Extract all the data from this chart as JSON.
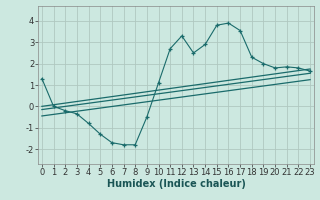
{
  "title": "",
  "xlabel": "Humidex (Indice chaleur)",
  "bg_color": "#cce8e0",
  "grid_color": "#b0c8c0",
  "line_color": "#1a6b6b",
  "scatter_x": [
    0,
    1,
    2,
    3,
    4,
    5,
    6,
    7,
    8,
    9,
    10,
    11,
    12,
    13,
    14,
    15,
    16,
    17,
    18,
    19,
    20,
    21,
    22,
    23
  ],
  "scatter_y": [
    1.3,
    0.0,
    -0.2,
    -0.35,
    -0.8,
    -1.3,
    -1.7,
    -1.8,
    -1.8,
    -0.5,
    1.1,
    2.7,
    3.3,
    2.5,
    2.9,
    3.8,
    3.9,
    3.55,
    2.3,
    2.0,
    1.8,
    1.85,
    1.8,
    1.65
  ],
  "line1_x": [
    0,
    23
  ],
  "line1_y": [
    0.0,
    1.75
  ],
  "line2_x": [
    0,
    23
  ],
  "line2_y": [
    -0.15,
    1.55
  ],
  "line3_x": [
    0,
    23
  ],
  "line3_y": [
    -0.45,
    1.25
  ],
  "xlim": [
    -0.3,
    23.3
  ],
  "ylim": [
    -2.7,
    4.7
  ],
  "xticks": [
    0,
    1,
    2,
    3,
    4,
    5,
    6,
    7,
    8,
    9,
    10,
    11,
    12,
    13,
    14,
    15,
    16,
    17,
    18,
    19,
    20,
    21,
    22,
    23
  ],
  "yticks": [
    -2,
    -1,
    0,
    1,
    2,
    3,
    4
  ],
  "tick_fontsize": 6.0,
  "xlabel_fontsize": 7.0
}
